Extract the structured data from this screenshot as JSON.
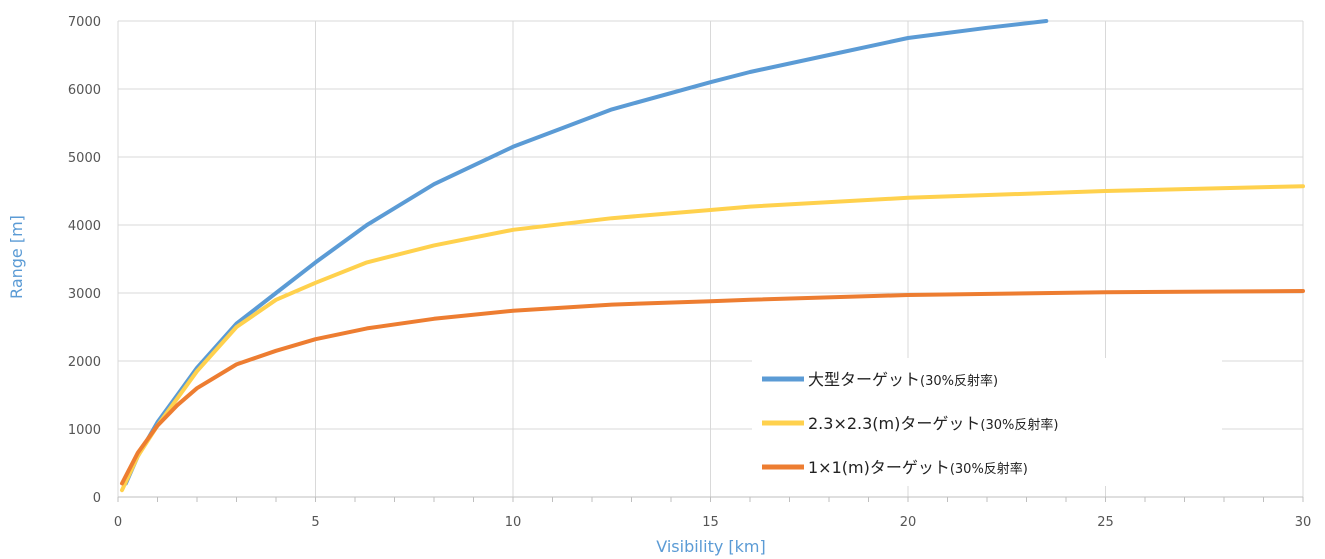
{
  "chart_data": {
    "type": "line",
    "xlabel": "Visibility [km]",
    "ylabel": "Range [m]",
    "xlim": [
      0,
      30
    ],
    "ylim": [
      0,
      7000
    ],
    "xticks": [
      "0",
      "5",
      "10",
      "15",
      "20",
      "25",
      "30"
    ],
    "yticks": [
      "0",
      "1000",
      "2000",
      "3000",
      "4000",
      "5000",
      "6000",
      "7000"
    ],
    "grid": "major",
    "legend": "bottom-right",
    "series": [
      {
        "name": "大型ターゲット",
        "name_suffix": "(30%反射率)",
        "color": "#5b9bd5",
        "x": [
          0.2,
          0.5,
          1,
          1.5,
          2,
          3,
          4,
          5,
          6.3,
          8,
          10,
          12.5,
          15,
          16,
          18,
          20,
          22,
          23.5
        ],
        "y": [
          200,
          600,
          1100,
          1500,
          1900,
          2550,
          3000,
          3450,
          4000,
          4600,
          5150,
          5700,
          6100,
          6250,
          6500,
          6750,
          6900,
          7000
        ]
      },
      {
        "name": "2.3×2.3(m)ターゲット",
        "name_suffix": "(30%反射率)",
        "color": "#ffd14d",
        "x": [
          0.1,
          0.5,
          1,
          1.5,
          2,
          3,
          4,
          5,
          6.3,
          8,
          10,
          12.5,
          15,
          16,
          20,
          25,
          30
        ],
        "y": [
          100,
          600,
          1050,
          1450,
          1850,
          2500,
          2900,
          3150,
          3450,
          3700,
          3930,
          4100,
          4220,
          4270,
          4400,
          4500,
          4570
        ]
      },
      {
        "name": "1×1(m)ターゲット",
        "name_suffix": "(30%反射率)",
        "color": "#ed7d31",
        "x": [
          0.1,
          0.5,
          1,
          1.5,
          2,
          3,
          4,
          5,
          6.3,
          8,
          10,
          12.5,
          15,
          16,
          20,
          25,
          30
        ],
        "y": [
          200,
          650,
          1050,
          1350,
          1600,
          1950,
          2150,
          2320,
          2480,
          2620,
          2740,
          2830,
          2880,
          2900,
          2970,
          3010,
          3030
        ]
      }
    ]
  }
}
